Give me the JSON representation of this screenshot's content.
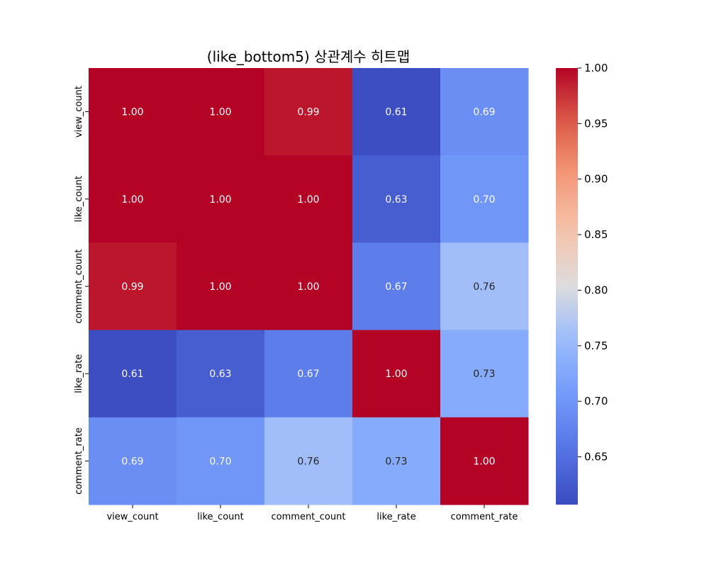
{
  "chart_data": {
    "type": "heatmap",
    "title": "(like_bottom5) 상관계수 히트맵",
    "x_categories": [
      "view_count",
      "like_count",
      "comment_count",
      "like_rate",
      "comment_rate"
    ],
    "y_categories": [
      "view_count",
      "like_count",
      "comment_count",
      "like_rate",
      "comment_rate"
    ],
    "values": [
      [
        1.0,
        1.0,
        0.99,
        0.61,
        0.69
      ],
      [
        1.0,
        1.0,
        1.0,
        0.63,
        0.7
      ],
      [
        0.99,
        1.0,
        1.0,
        0.67,
        0.76
      ],
      [
        0.61,
        0.63,
        0.67,
        1.0,
        0.73
      ],
      [
        0.69,
        0.7,
        0.76,
        0.73,
        1.0
      ]
    ],
    "value_labels": [
      [
        "1.00",
        "1.00",
        "0.99",
        "0.61",
        "0.69"
      ],
      [
        "1.00",
        "1.00",
        "1.00",
        "0.63",
        "0.70"
      ],
      [
        "0.99",
        "1.00",
        "1.00",
        "0.67",
        "0.76"
      ],
      [
        "0.61",
        "0.63",
        "0.67",
        "1.00",
        "0.73"
      ],
      [
        "0.69",
        "0.70",
        "0.76",
        "0.73",
        "1.00"
      ]
    ],
    "colormap": "coolwarm",
    "color_range": [
      0.607,
      1.0
    ],
    "colorbar_ticks": [
      "0.65",
      "0.70",
      "0.75",
      "0.80",
      "0.85",
      "0.90",
      "0.95",
      "1.00"
    ],
    "colorbar_position": "right"
  }
}
